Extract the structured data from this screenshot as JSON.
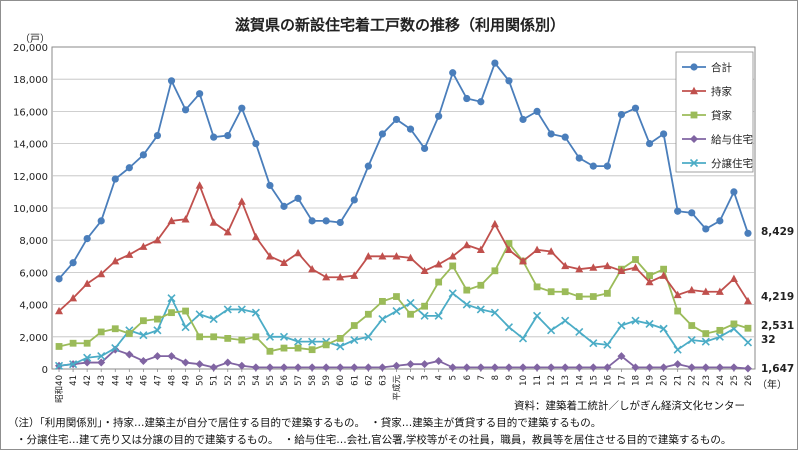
{
  "chart_data": {
    "type": "line",
    "title": "滋賀県の新設住宅着工戸数の推移（利用関係別）",
    "ylabel": "（戸）",
    "xlabel": "（年）",
    "ylim": [
      0,
      20000
    ],
    "yticks": [
      0,
      2000,
      4000,
      6000,
      8000,
      10000,
      12000,
      14000,
      16000,
      18000,
      20000
    ],
    "ytick_labels": [
      "0",
      "2,000",
      "4,000",
      "6,000",
      "8,000",
      "10,000",
      "12,000",
      "14,000",
      "16,000",
      "18,000",
      "20,000"
    ],
    "grid": true,
    "legend_position": "top-right",
    "categories": [
      "昭和40",
      "41",
      "42",
      "43",
      "44",
      "45",
      "46",
      "47",
      "48",
      "49",
      "50",
      "51",
      "52",
      "53",
      "54",
      "55",
      "56",
      "57",
      "58",
      "59",
      "60",
      "61",
      "62",
      "63",
      "平成元",
      "2",
      "3",
      "4",
      "5",
      "6",
      "7",
      "8",
      "9",
      "10",
      "11",
      "12",
      "13",
      "14",
      "15",
      "16",
      "17",
      "18",
      "19",
      "20",
      "21",
      "22",
      "23",
      "24",
      "25",
      "26"
    ],
    "series": [
      {
        "name": "合計",
        "color": "#4a7ebb",
        "marker": "circle",
        "values": [
          5600,
          6600,
          8100,
          9200,
          11800,
          12500,
          13300,
          14500,
          17900,
          16100,
          17100,
          14400,
          14500,
          16200,
          14000,
          11400,
          10100,
          10600,
          9200,
          9200,
          9100,
          10500,
          12600,
          14600,
          15500,
          14900,
          13700,
          15700,
          18400,
          16800,
          16600,
          19000,
          17900,
          15500,
          16000,
          14600,
          14400,
          13100,
          12600,
          12600,
          15800,
          16200,
          14000,
          14600,
          9800,
          9700,
          8700,
          9200,
          11000,
          8429
        ],
        "end_label": "8,429"
      },
      {
        "name": "持家",
        "color": "#c0504d",
        "marker": "triangle",
        "values": [
          3600,
          4400,
          5300,
          5900,
          6700,
          7100,
          7600,
          8000,
          9200,
          9300,
          11400,
          9100,
          8500,
          10400,
          8200,
          7000,
          6600,
          7200,
          6200,
          5700,
          5700,
          5800,
          7000,
          7000,
          7000,
          6900,
          6100,
          6500,
          7000,
          7700,
          7400,
          9000,
          7400,
          6700,
          7400,
          7300,
          6400,
          6200,
          6300,
          6400,
          6100,
          6300,
          5400,
          5800,
          4600,
          4900,
          4800,
          4800,
          5600,
          4219
        ],
        "end_label": "4,219"
      },
      {
        "name": "貸家",
        "color": "#9bbb59",
        "marker": "square",
        "values": [
          1400,
          1600,
          1600,
          2300,
          2500,
          2200,
          3000,
          3100,
          3500,
          3600,
          2000,
          2000,
          1900,
          1800,
          2000,
          1100,
          1300,
          1300,
          1200,
          1500,
          1900,
          2700,
          3400,
          4200,
          4500,
          3400,
          3900,
          5400,
          6400,
          4900,
          5200,
          6100,
          7800,
          6700,
          5100,
          4800,
          4800,
          4500,
          4500,
          4700,
          6200,
          6800,
          5800,
          6200,
          3600,
          2700,
          2200,
          2400,
          2800,
          2531
        ],
        "end_label": "2,531"
      },
      {
        "name": "給与住宅",
        "color": "#8064a2",
        "marker": "diamond",
        "values": [
          200,
          300,
          400,
          400,
          1200,
          900,
          500,
          800,
          800,
          400,
          300,
          100,
          400,
          200,
          100,
          100,
          100,
          100,
          100,
          100,
          100,
          100,
          100,
          100,
          200,
          300,
          300,
          500,
          100,
          100,
          100,
          100,
          100,
          100,
          100,
          100,
          100,
          100,
          100,
          100,
          800,
          100,
          100,
          100,
          300,
          100,
          100,
          100,
          100,
          32
        ],
        "end_label": "32"
      },
      {
        "name": "分譲住宅",
        "color": "#4bacc6",
        "marker": "x",
        "values": [
          200,
          300,
          700,
          800,
          1300,
          2400,
          2100,
          2400,
          4400,
          2600,
          3400,
          3100,
          3700,
          3700,
          3500,
          2000,
          2000,
          1700,
          1700,
          1700,
          1400,
          1800,
          2000,
          3100,
          3600,
          4100,
          3300,
          3300,
          4700,
          4000,
          3700,
          3500,
          2600,
          1900,
          3300,
          2400,
          3000,
          2300,
          1600,
          1500,
          2700,
          3000,
          2800,
          2500,
          1200,
          1800,
          1700,
          2000,
          2500,
          1647
        ],
        "end_label": "1,647"
      }
    ]
  },
  "footer": {
    "source": "資料：建築着工統計／しがぎん経済文化センター",
    "note_line1": "（注）「利用関係別」・持家…建築主が自分で居住する目的で建築するもの。　・貸家…建築主が賃貸する目的で建築するもの。",
    "note_line2": "・分譲住宅…建て売り又は分譲の目的で建築するもの。　・給与住宅…会社,官公署,学校等がその社員，職員，教員等を居住させる目的で建築するもの。"
  }
}
